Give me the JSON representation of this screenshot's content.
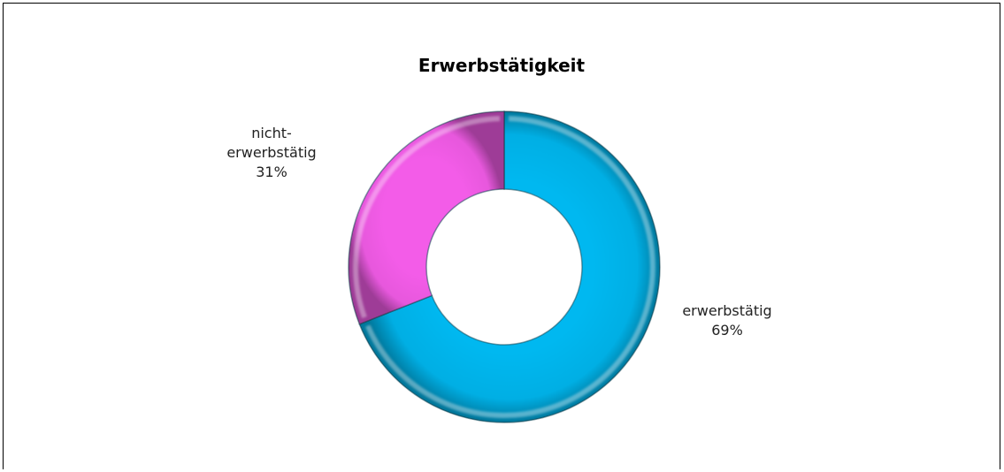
{
  "chart_data": {
    "type": "pie",
    "variant": "donut",
    "title": "Erwerbstätigkeit",
    "categories": [
      "erwerbstätig",
      "nicht-erwerbstätig"
    ],
    "values": [
      69,
      31
    ],
    "unit": "%",
    "series": [
      {
        "slices": [
          {
            "label": "erwerbstätig",
            "label_lines": [
              "erwerbstätig"
            ],
            "value": 69,
            "value_label": "69%",
            "color": "#00b8f0"
          },
          {
            "label": "nicht-erwerbstätig",
            "label_lines": [
              "nicht-",
              "erwerbstätig"
            ],
            "value": 31,
            "value_label": "31%",
            "color": "#f35ce8"
          }
        ]
      }
    ],
    "start_angle": "12 o'clock",
    "direction": "clockwise",
    "legend": "none",
    "data_labels": "outside"
  }
}
